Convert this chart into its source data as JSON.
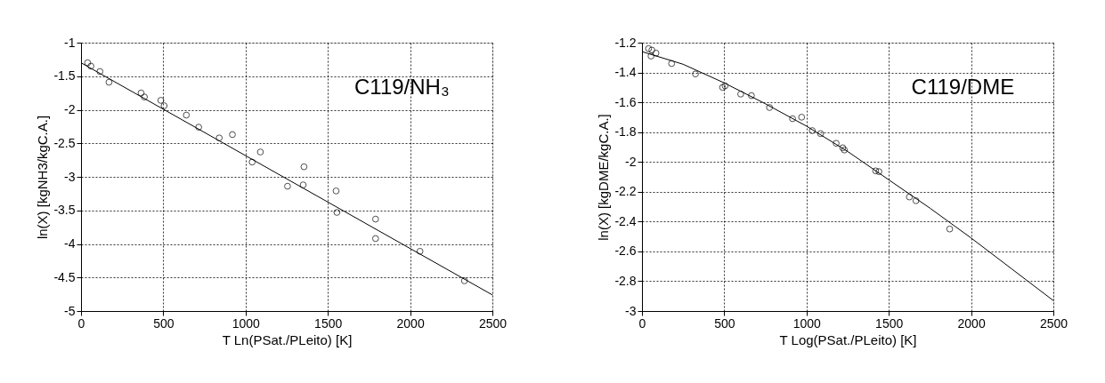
{
  "chart_data": [
    {
      "type": "scatter",
      "xlabel": "T Ln(PSat./PLeito)  [K]",
      "ylabel": "ln(X) [kgNH3/kgC.A.]",
      "annotations": [
        "C119/NH₃"
      ],
      "xlim": [
        0,
        2500
      ],
      "xticks": [
        0,
        500,
        1000,
        1500,
        2000,
        2500
      ],
      "ylim": [
        -5,
        -1
      ],
      "yticks": [
        -5,
        -4.5,
        -4,
        -3.5,
        -3,
        -2.5,
        -2,
        -1.5,
        -1
      ],
      "grid": true,
      "marker": "circle",
      "series": [
        {
          "color": "#000000",
          "x": [
            40,
            60,
            115,
            170,
            365,
            385,
            485,
            505,
            640,
            715,
            840,
            920,
            1040,
            1090,
            1255,
            1350,
            1355,
            1550,
            1555,
            1790,
            1790,
            2060,
            2330
          ],
          "values": [
            -1.3,
            -1.35,
            -1.43,
            -1.59,
            -1.75,
            -1.81,
            -1.86,
            -1.94,
            -2.08,
            -2.26,
            -2.42,
            -2.37,
            -2.78,
            -2.63,
            -3.14,
            -3.12,
            -2.85,
            -3.21,
            -3.53,
            -3.63,
            -3.92,
            -4.11,
            -4.55
          ]
        },
        {
          "type": "line",
          "color": "#000000",
          "marker": "none",
          "line_style": "solid",
          "x": [
            0,
            2500
          ],
          "values": [
            -1.3,
            -4.76
          ]
        }
      ]
    },
    {
      "type": "scatter",
      "xlabel": "T Log(PSat./PLeito) [K]",
      "ylabel": "ln(X) [kgDME/kgC.A.]",
      "annotations": [
        "C119/DME"
      ],
      "xlim": [
        0,
        2500
      ],
      "xticks": [
        0,
        500,
        1000,
        1500,
        2000,
        2500
      ],
      "ylim": [
        -3,
        -1.2
      ],
      "yticks": [
        -3,
        -2.8,
        -2.6,
        -2.4,
        -2.2,
        -2,
        -1.8,
        -1.6,
        -1.4,
        -1.2
      ],
      "grid": true,
      "marker": "circle",
      "series": [
        {
          "color": "#000000",
          "x": [
            40,
            60,
            55,
            85,
            180,
            325,
            490,
            505,
            600,
            665,
            775,
            915,
            970,
            1035,
            1085,
            1180,
            1220,
            1230,
            1420,
            1440,
            1625,
            1665,
            1870
          ],
          "values": [
            -1.24,
            -1.25,
            -1.29,
            -1.27,
            -1.34,
            -1.41,
            -1.5,
            -1.49,
            -1.545,
            -1.555,
            -1.635,
            -1.71,
            -1.7,
            -1.79,
            -1.81,
            -1.875,
            -1.905,
            -1.92,
            -2.06,
            -2.065,
            -2.235,
            -2.26,
            -2.45
          ]
        },
        {
          "type": "line",
          "color": "#000000",
          "marker": "none",
          "line_style": "solid",
          "x": [
            0,
            250,
            500,
            750,
            1000,
            1250,
            1500,
            1750,
            2000,
            2250,
            2500
          ],
          "values": [
            -1.26,
            -1.345,
            -1.47,
            -1.61,
            -1.76,
            -1.93,
            -2.12,
            -2.31,
            -2.51,
            -2.72,
            -2.93
          ]
        }
      ]
    }
  ]
}
